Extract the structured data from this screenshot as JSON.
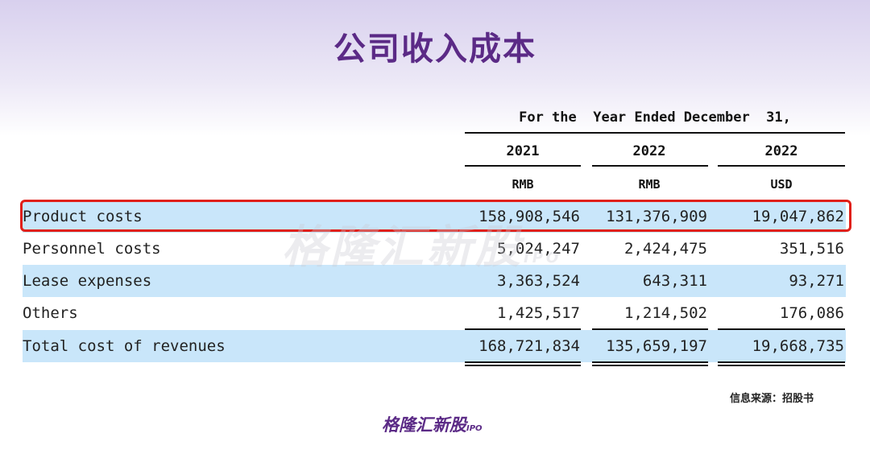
{
  "title": "公司收入成本",
  "table": {
    "period_header": "For the  Year Ended December  31,",
    "years": [
      "2021",
      "2022",
      "2022"
    ],
    "currencies": [
      "RMB",
      "RMB",
      "USD"
    ],
    "rows": [
      {
        "label": "Product costs",
        "values": [
          "158,908,546",
          "131,376,909",
          "19,047,862"
        ],
        "highlighted": true
      },
      {
        "label": "Personnel costs",
        "values": [
          "5,024,247",
          "2,424,475",
          "351,516"
        ]
      },
      {
        "label": "Lease expenses",
        "values": [
          "3,363,524",
          "643,311",
          "93,271"
        ]
      },
      {
        "label": "Others",
        "values": [
          "1,425,517",
          "1,214,502",
          "176,086"
        ]
      },
      {
        "label": "Total cost of revenues",
        "values": [
          "168,721,834",
          "135,659,197",
          "19,668,735"
        ]
      }
    ]
  },
  "watermark": {
    "text": "格隆汇新股",
    "suffix": "IPO"
  },
  "source": "信息来源：招股书",
  "logo": {
    "text": "格隆汇新股",
    "suffix": "IPO"
  },
  "colors": {
    "title": "#5b2a86",
    "row_shade": "#c9e6fa",
    "highlight_border": "#e0201a"
  }
}
